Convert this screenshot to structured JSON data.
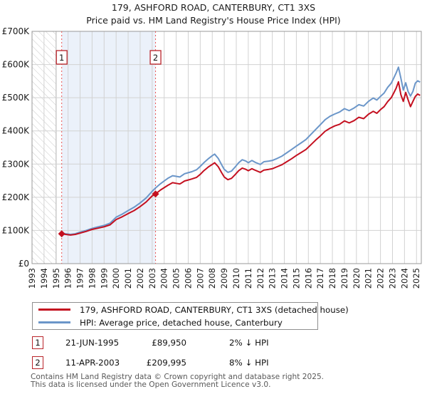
{
  "title": "179, ASHFORD ROAD, CANTERBURY, CT1 3XS",
  "subtitle": "Price paid vs. HM Land Registry's House Price Index (HPI)",
  "chart_data": {
    "type": "line",
    "unit": "GBP thousands",
    "x_range": [
      1993,
      2025.4
    ],
    "y_range": [
      0,
      700
    ],
    "grid": true,
    "x_ticks": [
      1993,
      1994,
      1995,
      1996,
      1997,
      1998,
      1999,
      2000,
      2001,
      2002,
      2003,
      2004,
      2005,
      2006,
      2007,
      2008,
      2009,
      2010,
      2011,
      2012,
      2013,
      2014,
      2015,
      2016,
      2017,
      2018,
      2019,
      2020,
      2021,
      2022,
      2023,
      2024,
      2025
    ],
    "y_ticks": [
      {
        "v": 0,
        "label": "£0"
      },
      {
        "v": 100,
        "label": "£100K"
      },
      {
        "v": 200,
        "label": "£200K"
      },
      {
        "v": 300,
        "label": "£300K"
      },
      {
        "v": 400,
        "label": "£400K"
      },
      {
        "v": 500,
        "label": "£500K"
      },
      {
        "v": 600,
        "label": "£600K"
      },
      {
        "v": 700,
        "label": "£700K"
      }
    ],
    "colors": {
      "property": "#c41020",
      "hpi": "#6b96c9",
      "dashed": "#ea5252",
      "shade": "#ebf1fa",
      "grid": "#d2d2d2",
      "border": "#999999",
      "hatch_line": "#c9c9c9",
      "data_start_line": "#777777"
    },
    "hatch_region": {
      "from": 1993,
      "to": 1995.0
    },
    "shaded_region": {
      "from": 1995.47,
      "to": 2003.28
    },
    "series": [
      {
        "name": "179, ASHFORD ROAD, CANTERBURY, CT1 3XS (detached house)",
        "data_name": "property-price-line",
        "color": "#c41020",
        "points_k": [
          [
            1995.47,
            90
          ],
          [
            1995.8,
            88
          ],
          [
            1996.2,
            86
          ],
          [
            1996.6,
            88
          ],
          [
            1997,
            92
          ],
          [
            1997.5,
            97
          ],
          [
            1998,
            103
          ],
          [
            1998.5,
            107
          ],
          [
            1999,
            111
          ],
          [
            1999.5,
            117
          ],
          [
            2000,
            133
          ],
          [
            2000.5,
            141
          ],
          [
            2001,
            151
          ],
          [
            2001.5,
            160
          ],
          [
            2002,
            172
          ],
          [
            2002.5,
            186
          ],
          [
            2003,
            204
          ],
          [
            2003.28,
            210
          ],
          [
            2003.7,
            222
          ],
          [
            2004,
            229
          ],
          [
            2004.3,
            236
          ],
          [
            2004.7,
            244
          ],
          [
            2005,
            242
          ],
          [
            2005.3,
            240
          ],
          [
            2005.7,
            249
          ],
          [
            2006,
            252
          ],
          [
            2006.3,
            255
          ],
          [
            2006.7,
            260
          ],
          [
            2007,
            269
          ],
          [
            2007.3,
            280
          ],
          [
            2007.7,
            292
          ],
          [
            2008,
            299
          ],
          [
            2008.2,
            304
          ],
          [
            2008.5,
            292
          ],
          [
            2008.8,
            273
          ],
          [
            2009,
            261
          ],
          [
            2009.3,
            253
          ],
          [
            2009.6,
            257
          ],
          [
            2009.9,
            268
          ],
          [
            2010.2,
            280
          ],
          [
            2010.5,
            288
          ],
          [
            2010.8,
            284
          ],
          [
            2011,
            280
          ],
          [
            2011.3,
            286
          ],
          [
            2011.6,
            281
          ],
          [
            2012,
            275
          ],
          [
            2012.3,
            282
          ],
          [
            2012.7,
            284
          ],
          [
            2013,
            286
          ],
          [
            2013.4,
            292
          ],
          [
            2013.8,
            298
          ],
          [
            2014.2,
            307
          ],
          [
            2014.6,
            316
          ],
          [
            2015,
            326
          ],
          [
            2015.4,
            335
          ],
          [
            2015.8,
            344
          ],
          [
            2016.2,
            358
          ],
          [
            2016.6,
            372
          ],
          [
            2017,
            385
          ],
          [
            2017.4,
            399
          ],
          [
            2017.8,
            408
          ],
          [
            2018.2,
            415
          ],
          [
            2018.6,
            420
          ],
          [
            2019,
            430
          ],
          [
            2019.4,
            424
          ],
          [
            2019.8,
            431
          ],
          [
            2020.2,
            441
          ],
          [
            2020.6,
            437
          ],
          [
            2021,
            450
          ],
          [
            2021.4,
            459
          ],
          [
            2021.7,
            453
          ],
          [
            2022,
            464
          ],
          [
            2022.3,
            473
          ],
          [
            2022.6,
            488
          ],
          [
            2022.9,
            500
          ],
          [
            2023.1,
            514
          ],
          [
            2023.3,
            528
          ],
          [
            2023.5,
            548
          ],
          [
            2023.7,
            509
          ],
          [
            2023.9,
            489
          ],
          [
            2024.1,
            516
          ],
          [
            2024.3,
            494
          ],
          [
            2024.5,
            473
          ],
          [
            2024.7,
            489
          ],
          [
            2024.9,
            504
          ],
          [
            2025.1,
            511
          ],
          [
            2025.3,
            507
          ]
        ]
      },
      {
        "name": "HPI: Average price, detached house, Canterbury",
        "data_name": "hpi-line",
        "color": "#6b96c9",
        "points_k": [
          [
            1995.47,
            92
          ],
          [
            1995.8,
            90
          ],
          [
            1996.2,
            88
          ],
          [
            1996.6,
            90
          ],
          [
            1997,
            95
          ],
          [
            1997.5,
            100
          ],
          [
            1998,
            106
          ],
          [
            1998.5,
            111
          ],
          [
            1999,
            115
          ],
          [
            1999.5,
            122
          ],
          [
            2000,
            140
          ],
          [
            2000.5,
            149
          ],
          [
            2001,
            160
          ],
          [
            2001.5,
            170
          ],
          [
            2002,
            183
          ],
          [
            2002.5,
            198
          ],
          [
            2003,
            218
          ],
          [
            2003.28,
            228
          ],
          [
            2003.7,
            241
          ],
          [
            2004,
            249
          ],
          [
            2004.3,
            257
          ],
          [
            2004.7,
            265
          ],
          [
            2005,
            263
          ],
          [
            2005.3,
            261
          ],
          [
            2005.7,
            271
          ],
          [
            2006,
            274
          ],
          [
            2006.3,
            277
          ],
          [
            2006.7,
            283
          ],
          [
            2007,
            293
          ],
          [
            2007.3,
            304
          ],
          [
            2007.7,
            317
          ],
          [
            2008,
            325
          ],
          [
            2008.2,
            330
          ],
          [
            2008.5,
            317
          ],
          [
            2008.8,
            297
          ],
          [
            2009,
            284
          ],
          [
            2009.3,
            275
          ],
          [
            2009.6,
            279
          ],
          [
            2009.9,
            291
          ],
          [
            2010.2,
            304
          ],
          [
            2010.5,
            313
          ],
          [
            2010.8,
            309
          ],
          [
            2011,
            304
          ],
          [
            2011.3,
            311
          ],
          [
            2011.6,
            305
          ],
          [
            2012,
            299
          ],
          [
            2012.3,
            307
          ],
          [
            2012.7,
            309
          ],
          [
            2013,
            311
          ],
          [
            2013.4,
            317
          ],
          [
            2013.8,
            324
          ],
          [
            2014.2,
            334
          ],
          [
            2014.6,
            344
          ],
          [
            2015,
            354
          ],
          [
            2015.4,
            364
          ],
          [
            2015.8,
            374
          ],
          [
            2016.2,
            389
          ],
          [
            2016.6,
            404
          ],
          [
            2017,
            419
          ],
          [
            2017.4,
            434
          ],
          [
            2017.8,
            444
          ],
          [
            2018.2,
            451
          ],
          [
            2018.6,
            457
          ],
          [
            2019,
            467
          ],
          [
            2019.4,
            461
          ],
          [
            2019.8,
            469
          ],
          [
            2020.2,
            479
          ],
          [
            2020.6,
            475
          ],
          [
            2021,
            489
          ],
          [
            2021.4,
            499
          ],
          [
            2021.7,
            493
          ],
          [
            2022,
            504
          ],
          [
            2022.3,
            514
          ],
          [
            2022.6,
            531
          ],
          [
            2022.9,
            544
          ],
          [
            2023.1,
            559
          ],
          [
            2023.3,
            574
          ],
          [
            2023.5,
            592
          ],
          [
            2023.7,
            559
          ],
          [
            2023.9,
            523
          ],
          [
            2024.1,
            545
          ],
          [
            2024.3,
            519
          ],
          [
            2024.5,
            505
          ],
          [
            2024.7,
            519
          ],
          [
            2024.9,
            544
          ],
          [
            2025.1,
            551
          ],
          [
            2025.3,
            547
          ]
        ]
      }
    ],
    "sale_markers": [
      {
        "label": "1",
        "x": 1995.47,
        "y_k": 89.95
      },
      {
        "label": "2",
        "x": 2003.28,
        "y_k": 209.995
      }
    ]
  },
  "legend": {
    "items": [
      {
        "label": "179, ASHFORD ROAD, CANTERBURY, CT1 3XS (detached house)",
        "color": "#c41020"
      },
      {
        "label": "HPI: Average price, detached house, Canterbury",
        "color": "#6b96c9"
      }
    ]
  },
  "transactions": [
    {
      "num": "1",
      "date": "21-JUN-1995",
      "price": "£89,950",
      "hpi_delta": "2% ↓ HPI"
    },
    {
      "num": "2",
      "date": "11-APR-2003",
      "price": "£209,995",
      "hpi_delta": "8% ↓ HPI"
    }
  ],
  "footer": {
    "line1": "Contains HM Land Registry data © Crown copyright and database right 2025.",
    "line2": "This data is licensed under the Open Government Licence v3.0."
  }
}
